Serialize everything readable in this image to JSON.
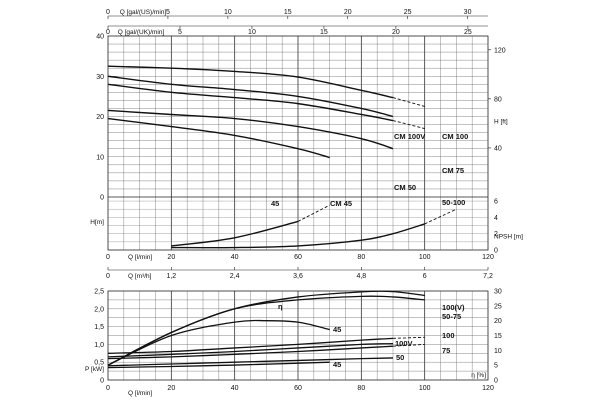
{
  "chart_data": [
    {
      "type": "line",
      "chart": "performance",
      "axes": {
        "q_us_label": "Q [gal/(US)/min]",
        "q_us_ticks": [
          "0",
          "5",
          "10",
          "15",
          "20",
          "25",
          "30"
        ],
        "q_uk_label": "Q [gal/(UK)/min]",
        "q_uk_ticks": [
          "0",
          "5",
          "10",
          "15",
          "20",
          "25"
        ],
        "h_m_label": "H[m]",
        "h_m_ticks": [
          "0",
          "10",
          "20",
          "30",
          "40"
        ],
        "h_m_range": [
          0,
          40
        ],
        "h_ft_label": "H [ft]",
        "h_ft_ticks": [
          "40",
          "80",
          "120"
        ],
        "npsh_label": "NPSH [m]",
        "npsh_ticks": [
          "0",
          "2",
          "4",
          "6"
        ],
        "q_lmin_label": "Q [l/min]",
        "q_lmin_ticks": [
          "0",
          "20",
          "40",
          "60",
          "80",
          "100",
          "120"
        ],
        "q_lmin_range": [
          0,
          120
        ],
        "q_m3h_label": "Q [m³/h]",
        "q_m3h_ticks": [
          "0",
          "1,2",
          "2,4",
          "3,6",
          "4,8",
          "6",
          "7,2"
        ]
      },
      "series": [
        {
          "name": "CM 100",
          "x": [
            0,
            20,
            40,
            60,
            80,
            90,
            100
          ],
          "y": [
            32.5,
            32,
            31.2,
            29.8,
            26.5,
            24.7,
            22.5
          ],
          "solid_until": 90
        },
        {
          "name": "CM 100V",
          "x": [
            0,
            20,
            40,
            60,
            80,
            90
          ],
          "y": [
            30,
            28,
            26.7,
            25,
            22,
            20
          ]
        },
        {
          "name": "CM 75",
          "x": [
            0,
            20,
            40,
            60,
            80,
            90,
            100
          ],
          "y": [
            28,
            26,
            24.7,
            23.2,
            20.5,
            19,
            17
          ],
          "solid_until": 90
        },
        {
          "name": "CM 50",
          "x": [
            0,
            20,
            40,
            60,
            80,
            90
          ],
          "y": [
            21.5,
            20.5,
            19.5,
            17.5,
            14.5,
            12
          ]
        },
        {
          "name": "CM 45",
          "x": [
            0,
            20,
            40,
            60,
            70
          ],
          "y": [
            19.5,
            17.5,
            15.3,
            12,
            9.8
          ]
        }
      ],
      "npsh_series": [
        {
          "name": "45",
          "x": [
            20,
            40,
            60,
            70
          ],
          "y": [
            0.5,
            1.5,
            3.5,
            5.5
          ],
          "solid_until": 60
        },
        {
          "name": "50-100",
          "x": [
            20,
            40,
            60,
            80,
            90,
            100,
            110
          ],
          "y": [
            0.3,
            0.3,
            0.5,
            1.2,
            2,
            3.2,
            5
          ],
          "solid_until": 100
        }
      ]
    },
    {
      "type": "line",
      "chart": "power_efficiency",
      "axes": {
        "p_label": "P [kW]",
        "p_ticks": [
          "0",
          "0,5",
          "1,0",
          "1,5",
          "2,0",
          "2,5"
        ],
        "p_range": [
          0,
          2.5
        ],
        "eta_label": "η [%]",
        "eta_ticks": [
          "0",
          "5",
          "10",
          "15",
          "20",
          "25",
          "30"
        ],
        "eta_range": [
          0,
          30
        ],
        "q_lmin_label": "Q [l/min]",
        "q_lmin_ticks": [
          "0",
          "20",
          "40",
          "60",
          "80",
          "100",
          "120"
        ],
        "eta_symbol": "η"
      },
      "efficiency": [
        {
          "name": "100(V)",
          "x": [
            0,
            20,
            40,
            60,
            80,
            90,
            100
          ],
          "y": [
            5,
            16,
            24,
            28,
            29.7,
            29.8,
            28.5
          ]
        },
        {
          "name": "50-75",
          "x": [
            0,
            20,
            40,
            60,
            80,
            90,
            100
          ],
          "y": [
            5,
            16,
            24,
            27,
            28.2,
            28,
            27
          ]
        },
        {
          "name": "45",
          "x": [
            0,
            20,
            40,
            50,
            60,
            70
          ],
          "y": [
            5,
            15,
            19.5,
            20,
            19.5,
            17
          ]
        }
      ],
      "power": [
        {
          "name": "100",
          "x": [
            0,
            20,
            40,
            60,
            80,
            90,
            100
          ],
          "y": [
            0.75,
            0.8,
            0.9,
            1.0,
            1.12,
            1.17,
            1.2
          ],
          "solid_until": 90
        },
        {
          "name": "100V",
          "x": [
            0,
            20,
            40,
            60,
            80,
            90
          ],
          "y": [
            0.65,
            0.72,
            0.8,
            0.9,
            1.0,
            1.02
          ]
        },
        {
          "name": "75",
          "x": [
            0,
            20,
            40,
            60,
            80,
            90,
            100
          ],
          "y": [
            0.6,
            0.65,
            0.72,
            0.8,
            0.9,
            0.95,
            1.0
          ],
          "solid_until": 90
        },
        {
          "name": "50",
          "x": [
            0,
            20,
            40,
            60,
            80,
            90
          ],
          "y": [
            0.4,
            0.45,
            0.5,
            0.55,
            0.6,
            0.62
          ]
        },
        {
          "name": "45",
          "x": [
            0,
            20,
            40,
            60,
            70
          ],
          "y": [
            0.35,
            0.38,
            0.42,
            0.47,
            0.5
          ]
        }
      ]
    }
  ]
}
